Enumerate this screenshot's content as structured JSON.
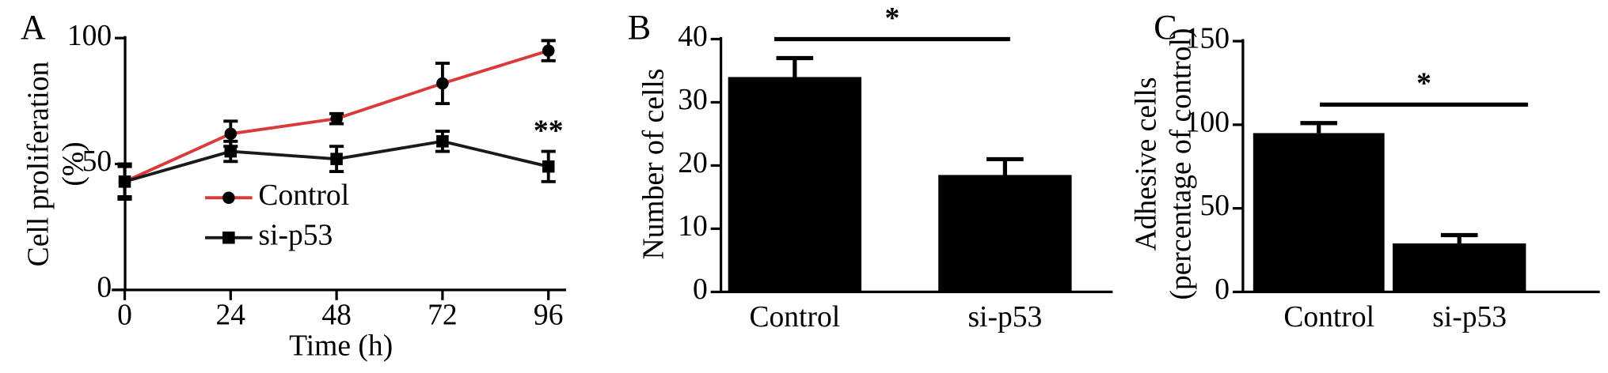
{
  "chart_data": [
    {
      "type": "line",
      "panel": "A",
      "ylabel": [
        "Cell proliferation",
        "(%)"
      ],
      "xlabel": "Time (h)",
      "x": [
        0,
        24,
        48,
        72,
        96
      ],
      "series": [
        {
          "name": "Control",
          "color": "#d93a3a",
          "marker": "circle",
          "values": [
            43,
            62,
            68,
            82,
            95
          ],
          "errors": [
            6,
            5,
            2,
            8,
            4
          ]
        },
        {
          "name": "si-p53",
          "color": "#1a1a1a",
          "marker": "square",
          "values": [
            43,
            55,
            52,
            59,
            49
          ],
          "errors": [
            7,
            4,
            5,
            4,
            6
          ]
        }
      ],
      "annotation": "**",
      "xlim": [
        -2,
        100
      ],
      "xticks": [
        0,
        24,
        48,
        72,
        96
      ],
      "ylim": [
        0,
        100
      ],
      "yticks": [
        0,
        50,
        100
      ]
    },
    {
      "type": "bar",
      "panel": "B",
      "ylabel": [
        "Number of cells"
      ],
      "categories": [
        "Control",
        "si-p53"
      ],
      "values": [
        34,
        18.5
      ],
      "errors": [
        3,
        2.5
      ],
      "color": "#000000",
      "annotation": "*",
      "ylim": [
        0,
        40
      ],
      "yticks": [
        0,
        10,
        20,
        30,
        40
      ]
    },
    {
      "type": "bar",
      "panel": "C",
      "ylabel": [
        "Adhesive cells",
        "(percentage of control)"
      ],
      "categories": [
        "Control",
        "si-p53"
      ],
      "values": [
        95,
        29
      ],
      "errors": [
        6,
        5
      ],
      "color": "#000000",
      "annotation": "*",
      "ylim": [
        0,
        150
      ],
      "yticks": [
        0,
        50,
        100,
        150
      ]
    }
  ]
}
